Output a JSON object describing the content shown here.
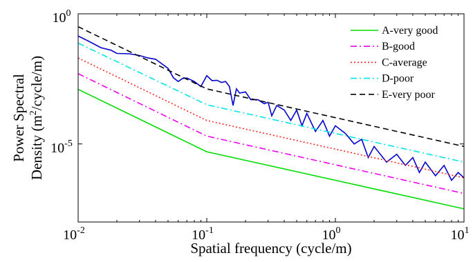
{
  "chart_data": {
    "type": "line",
    "x_scale": "log",
    "y_scale": "log",
    "xlim": [
      0.01,
      10
    ],
    "ylim": [
      1e-08,
      1
    ],
    "xlabel": "Spatial frequency (cycle/m)",
    "ylabel_line1": "Power Spectral",
    "ylabel_line2_pre": "Density (m",
    "ylabel_line2_sup": "2",
    "ylabel_line2_post": "/cycle/m)",
    "x_ticks": [
      {
        "value": 0.01,
        "base": "10",
        "exp": "-2"
      },
      {
        "value": 0.1,
        "base": "10",
        "exp": "-1"
      },
      {
        "value": 1,
        "base": "10",
        "exp": "0"
      },
      {
        "value": 10,
        "base": "10",
        "exp": "1"
      }
    ],
    "y_ticks": [
      {
        "value": 1e-05,
        "base": "10",
        "exp": "-5"
      },
      {
        "value": 1,
        "base": "10",
        "exp": "0"
      }
    ],
    "grid": false,
    "legend_position": "top-right",
    "series": [
      {
        "name": "A-very good",
        "color": "#00dd00",
        "dash": "solid",
        "x": [
          0.01,
          0.1,
          10
        ],
        "y": [
          0.00125,
          5e-06,
          3.2e-08
        ]
      },
      {
        "name": "B-good",
        "color": "#ee00ee",
        "dash": "dashdot",
        "x": [
          0.01,
          0.1,
          10
        ],
        "y": [
          0.005,
          2e-05,
          1.25e-07
        ]
      },
      {
        "name": "C-average",
        "color": "#ff2020",
        "dash": "dotted",
        "x": [
          0.01,
          0.1,
          10
        ],
        "y": [
          0.02,
          8e-05,
          5e-07
        ]
      },
      {
        "name": "D-poor",
        "color": "#00e5e5",
        "dash": "dashdot",
        "x": [
          0.01,
          0.1,
          10
        ],
        "y": [
          0.075,
          0.00032,
          2e-06
        ]
      },
      {
        "name": "E-very poor",
        "color": "#000000",
        "dash": "dashed",
        "x": [
          0.01,
          0.1,
          10
        ],
        "y": [
          0.32,
          0.0013,
          8e-06
        ]
      }
    ],
    "measured": {
      "color": "#0000cc",
      "x": [
        0.01,
        0.012,
        0.015,
        0.018,
        0.02,
        0.025,
        0.03,
        0.035,
        0.04,
        0.05,
        0.055,
        0.06,
        0.065,
        0.07,
        0.08,
        0.09,
        0.1,
        0.11,
        0.12,
        0.13,
        0.14,
        0.15,
        0.16,
        0.17,
        0.18,
        0.2,
        0.22,
        0.25,
        0.28,
        0.3,
        0.32,
        0.35,
        0.4,
        0.45,
        0.5,
        0.55,
        0.6,
        0.7,
        0.8,
        0.9,
        1.0,
        1.2,
        1.4,
        1.6,
        1.8,
        2.0,
        2.5,
        3.0,
        3.5,
        4.0,
        4.5,
        5.0,
        6.0,
        7.0,
        8.0,
        9.0,
        10.0
      ],
      "y": [
        0.14,
        0.09,
        0.05,
        0.04,
        0.03,
        0.029,
        0.025,
        0.02,
        0.018,
        0.008,
        0.0035,
        0.0025,
        0.0033,
        0.0034,
        0.0025,
        0.0016,
        0.0042,
        0.0027,
        0.0028,
        0.0023,
        0.0025,
        0.0016,
        0.0003,
        0.0013,
        0.0009,
        0.001,
        0.0005,
        0.0005,
        0.00035,
        0.0004,
        0.00012,
        0.0003,
        0.0002,
        8e-05,
        0.0002,
        5e-05,
        0.00015,
        3e-05,
        8e-05,
        2e-05,
        5e-05,
        2.5e-05,
        1e-05,
        1.5e-05,
        3e-06,
        8e-06,
        2e-06,
        4e-06,
        1.5e-06,
        3e-06,
        8e-07,
        2e-06,
        6e-07,
        1.5e-06,
        4e-07,
        8e-07,
        5e-07
      ]
    }
  }
}
